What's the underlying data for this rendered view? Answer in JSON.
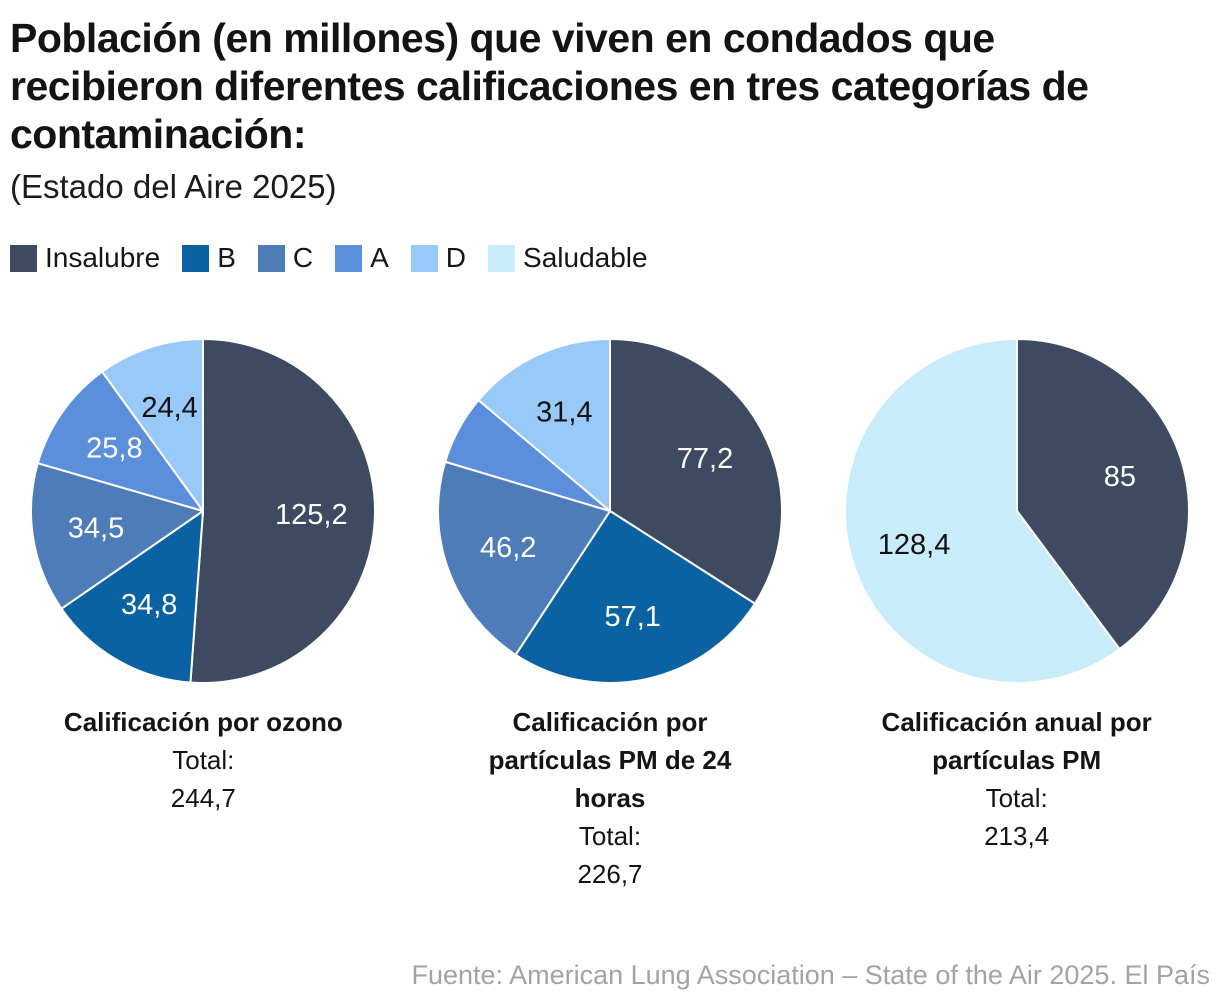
{
  "header": {
    "title_lines": [
      "Población (en millones) que viven en condados que",
      "recibieron diferentes calificaciones en tres categorías de",
      "contaminación:"
    ],
    "subtitle": "(Estado del Aire 2025)"
  },
  "legend": [
    {
      "label": "Insalubre",
      "color": "#3d4a61"
    },
    {
      "label": "B",
      "color": "#0b62a2"
    },
    {
      "label": "C",
      "color": "#4e7cb9"
    },
    {
      "label": "A",
      "color": "#5b8fdc"
    },
    {
      "label": "D",
      "color": "#98c9f9"
    },
    {
      "label": "Saludable",
      "color": "#c9ecfb"
    }
  ],
  "footer": "Fuente: American Lung Association – State of the Air 2025. El País",
  "chart_data": [
    {
      "type": "pie",
      "title": "Calificación por ozono",
      "title_lines": [
        "Calificación por ozono"
      ],
      "total_label": "Total:",
      "total_value": "244,7",
      "slices": [
        {
          "category": "Insalubre",
          "value": 125.2,
          "label": "125,2",
          "color": "#3d4a61",
          "label_color": "#ffffff"
        },
        {
          "category": "B",
          "value": 34.8,
          "label": "34,8",
          "color": "#0b62a2",
          "label_color": "#ffffff"
        },
        {
          "category": "C",
          "value": 34.5,
          "label": "34,5",
          "color": "#4e7cb9",
          "label_color": "#ffffff"
        },
        {
          "category": "A",
          "value": 25.8,
          "label": "25,8",
          "color": "#5b8fdc",
          "label_color": "#ffffff"
        },
        {
          "category": "D",
          "value": 24.4,
          "label": "24,4",
          "color": "#98c9f9",
          "label_color": "#121212"
        }
      ]
    },
    {
      "type": "pie",
      "title": "Calificación por partículas PM de 24 horas",
      "title_lines": [
        "Calificación por",
        "partículas PM de 24",
        "horas"
      ],
      "total_label": "Total:",
      "total_value": "226,7",
      "slices": [
        {
          "category": "Insalubre",
          "value": 77.2,
          "label": "77,2",
          "color": "#3d4a61",
          "label_color": "#ffffff"
        },
        {
          "category": "B",
          "value": 57.1,
          "label": "57,1",
          "color": "#0b62a2",
          "label_color": "#ffffff"
        },
        {
          "category": "C",
          "value": 46.2,
          "label": "46,2",
          "color": "#4e7cb9",
          "label_color": "#ffffff"
        },
        {
          "category": "A",
          "value": 14.8,
          "label": "",
          "color": "#5b8fdc",
          "label_color": "#ffffff"
        },
        {
          "category": "D",
          "value": 31.4,
          "label": "31,4",
          "color": "#98c9f9",
          "label_color": "#121212"
        }
      ]
    },
    {
      "type": "pie",
      "title": "Calificación anual por partículas PM",
      "title_lines": [
        "Calificación anual por",
        "partículas PM"
      ],
      "total_label": "Total:",
      "total_value": "213,4",
      "slices": [
        {
          "category": "Insalubre",
          "value": 85,
          "label": "85",
          "color": "#3d4a61",
          "label_color": "#ffffff"
        },
        {
          "category": "Saludable",
          "value": 128.4,
          "label": "128,4",
          "color": "#c9ecfb",
          "label_color": "#121212"
        }
      ]
    }
  ]
}
